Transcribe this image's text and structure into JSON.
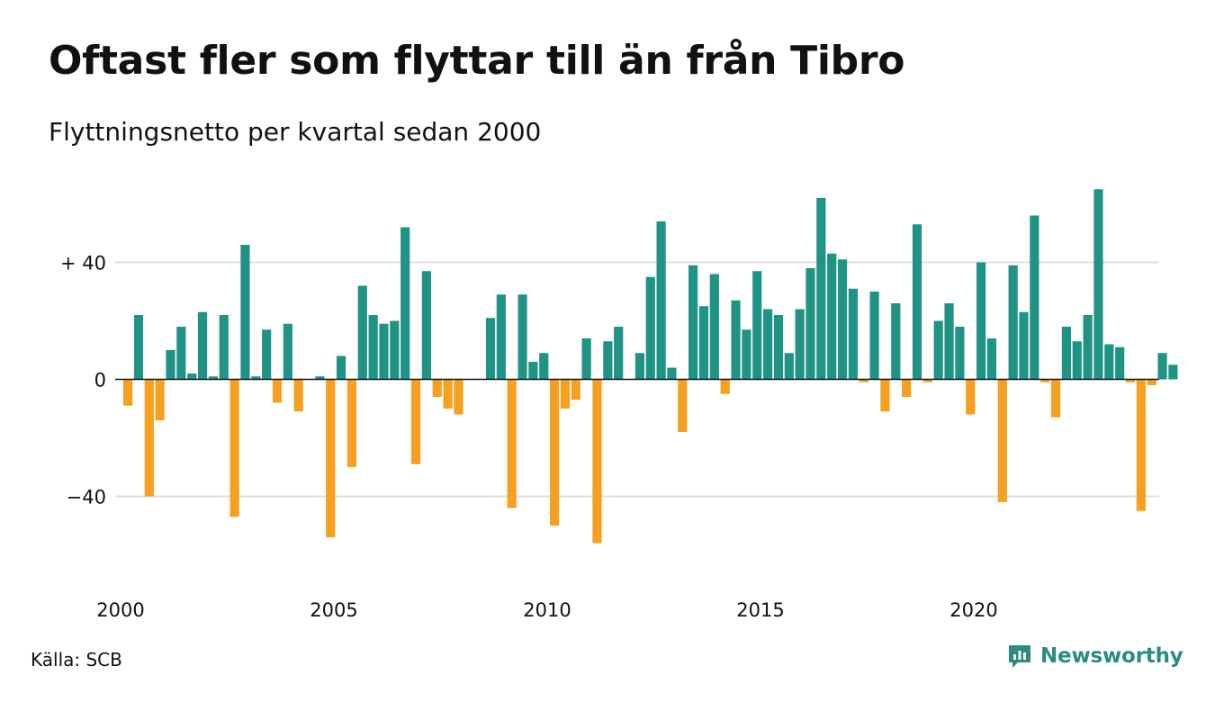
{
  "header": {
    "title": "Oftast fler som flyttar till än från Tibro",
    "subtitle": "Flyttningsnetto per kvartal sedan 2000"
  },
  "footer": {
    "source": "Källa: SCB",
    "brand": "Newsworthy",
    "brand_icon": "newsworthy-logo-icon"
  },
  "colors": {
    "positive": "#1f9484",
    "negative": "#f5a01f",
    "grid": "#dedede",
    "axis": "#111111",
    "brand": "#2b8c7d"
  },
  "chart_data": {
    "type": "bar",
    "x_start_year": 2000,
    "x_tick_labels": [
      "2000",
      "2005",
      "2010",
      "2015",
      "2020"
    ],
    "x_tick_years": [
      2000,
      2005,
      2010,
      2015,
      2020
    ],
    "y_tick_labels": [
      "+ 40",
      "0",
      "−40"
    ],
    "y_tick_values": [
      40,
      0,
      -40
    ],
    "ylim": [
      -62,
      66
    ],
    "grid": true,
    "values": [
      -9,
      22,
      -40,
      -14,
      10,
      18,
      2,
      23,
      1,
      22,
      -47,
      46,
      1,
      17,
      -8,
      19,
      -11,
      0,
      1,
      -54,
      8,
      -30,
      32,
      22,
      19,
      20,
      52,
      -29,
      37,
      -6,
      -10,
      -12,
      0,
      0,
      21,
      29,
      -44,
      29,
      6,
      9,
      -50,
      -10,
      -7,
      14,
      -56,
      13,
      18,
      0,
      9,
      35,
      54,
      4,
      -18,
      39,
      25,
      36,
      -5,
      27,
      17,
      37,
      24,
      22,
      9,
      24,
      38,
      62,
      43,
      41,
      31,
      -1,
      30,
      -11,
      26,
      -6,
      53,
      -1,
      20,
      26,
      18,
      -12,
      40,
      14,
      -42,
      39,
      23,
      56,
      -1,
      -13,
      18,
      13,
      22,
      65,
      12,
      11,
      -1,
      -45,
      -2,
      9,
      5
    ]
  }
}
